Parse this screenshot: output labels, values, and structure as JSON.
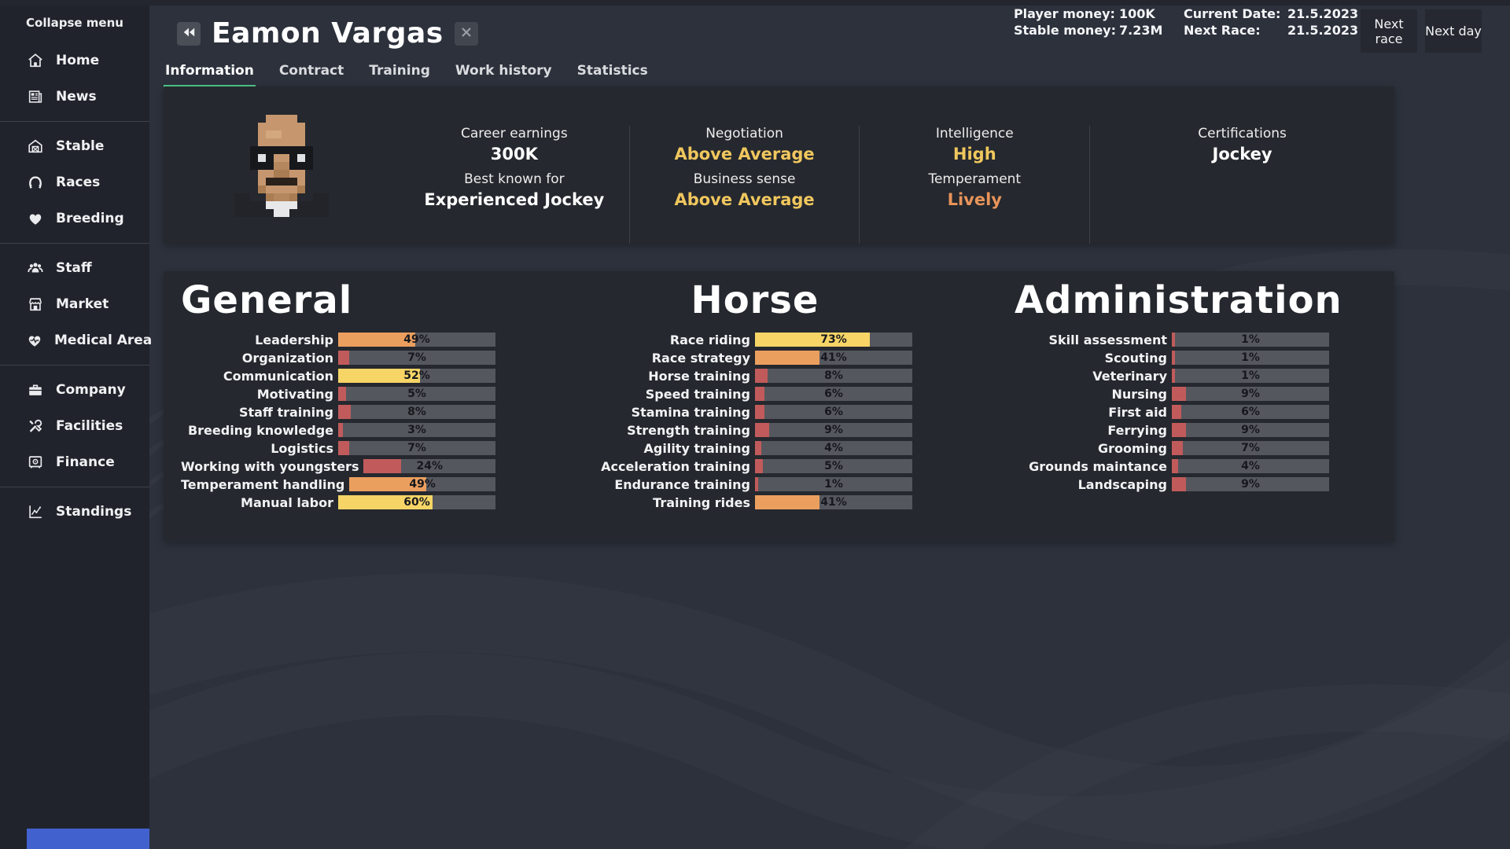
{
  "topbar": {
    "player_money_label": "Player money:",
    "player_money": "100K",
    "current_date_label": "Current Date:",
    "current_date": "21.5.2023",
    "stable_money_label": "Stable money:",
    "stable_money": "7.23M",
    "next_race_label": "Next Race:",
    "next_race_date": "21.5.2023",
    "next_race_button": "Next race",
    "next_day_button": "Next day"
  },
  "sidebar": {
    "collapse_label": "Collapse menu",
    "groups": [
      [
        {
          "icon": "home-icon",
          "label": "Home"
        },
        {
          "icon": "news-icon",
          "label": "News"
        }
      ],
      [
        {
          "icon": "stable-icon",
          "label": "Stable"
        },
        {
          "icon": "races-icon",
          "label": "Races"
        },
        {
          "icon": "breeding-icon",
          "label": "Breeding"
        }
      ],
      [
        {
          "icon": "staff-icon",
          "label": "Staff"
        },
        {
          "icon": "market-icon",
          "label": "Market"
        },
        {
          "icon": "medical-icon",
          "label": "Medical Area"
        }
      ],
      [
        {
          "icon": "company-icon",
          "label": "Company"
        },
        {
          "icon": "facilities-icon",
          "label": "Facilities"
        },
        {
          "icon": "finance-icon",
          "label": "Finance"
        }
      ],
      [
        {
          "icon": "standings-icon",
          "label": "Standings"
        }
      ]
    ]
  },
  "header": {
    "title": "Eamon Vargas",
    "back_icon": "rewind-icon",
    "close_icon": "close-icon"
  },
  "tabs": [
    {
      "label": "Information",
      "active": true
    },
    {
      "label": "Contract",
      "active": false
    },
    {
      "label": "Training",
      "active": false
    },
    {
      "label": "Work history",
      "active": false
    },
    {
      "label": "Statistics",
      "active": false
    }
  ],
  "profile": {
    "columns": [
      {
        "rows": [
          {
            "label": "Career earnings",
            "value": "300K",
            "color": "white"
          },
          {
            "label": "Best known for",
            "value": "Experienced Jockey",
            "color": "white"
          }
        ]
      },
      {
        "rows": [
          {
            "label": "Negotiation",
            "value": "Above Average",
            "color": "yellow"
          },
          {
            "label": "Business sense",
            "value": "Above Average",
            "color": "yellow"
          }
        ]
      },
      {
        "rows": [
          {
            "label": "Intelligence",
            "value": "High",
            "color": "yellow"
          },
          {
            "label": "Temperament",
            "value": "Lively",
            "color": "orange"
          }
        ]
      },
      {
        "rows": [
          {
            "label": "Certifications",
            "value": "Jockey",
            "color": "white"
          }
        ]
      }
    ]
  },
  "skills": {
    "sections": [
      {
        "title": "General",
        "items": [
          {
            "label": "Leadership",
            "value": 49
          },
          {
            "label": "Organization",
            "value": 7
          },
          {
            "label": "Communication",
            "value": 52
          },
          {
            "label": "Motivating",
            "value": 5
          },
          {
            "label": "Staff training",
            "value": 8
          },
          {
            "label": "Breeding knowledge",
            "value": 3
          },
          {
            "label": "Logistics",
            "value": 7
          },
          {
            "label": "Working with youngsters",
            "value": 24
          },
          {
            "label": "Temperament handling",
            "value": 49
          },
          {
            "label": "Manual labor",
            "value": 60
          }
        ]
      },
      {
        "title": "Horse",
        "items": [
          {
            "label": "Race riding",
            "value": 73
          },
          {
            "label": "Race strategy",
            "value": 41
          },
          {
            "label": "Horse training",
            "value": 8
          },
          {
            "label": "Speed training",
            "value": 6
          },
          {
            "label": "Stamina training",
            "value": 6
          },
          {
            "label": "Strength training",
            "value": 9
          },
          {
            "label": "Agility training",
            "value": 4
          },
          {
            "label": "Acceleration training",
            "value": 5
          },
          {
            "label": "Endurance training",
            "value": 1
          },
          {
            "label": "Training rides",
            "value": 41
          }
        ]
      },
      {
        "title": "Administration",
        "items": [
          {
            "label": "Skill assessment",
            "value": 1
          },
          {
            "label": "Scouting",
            "value": 1
          },
          {
            "label": "Veterinary",
            "value": 1
          },
          {
            "label": "Nursing",
            "value": 9
          },
          {
            "label": "First aid",
            "value": 6
          },
          {
            "label": "Ferrying",
            "value": 9
          },
          {
            "label": "Grooming",
            "value": 7
          },
          {
            "label": "Grounds maintance",
            "value": 4
          },
          {
            "label": "Landscaping",
            "value": 9
          }
        ]
      }
    ]
  },
  "colors": {
    "bar_red": "#c15b5b",
    "bar_orange": "#eb9f5f",
    "bar_yellow": "#f6d466",
    "bar_track": "#55575e",
    "accent_green": "#4ec98c",
    "text_yellow": "#f0c75e",
    "text_orange": "#e8945a",
    "sidebar_bg": "#20232b",
    "card_bg": "#25282e",
    "page_bg": "#2c313c",
    "blue_box": "#4161cf"
  }
}
